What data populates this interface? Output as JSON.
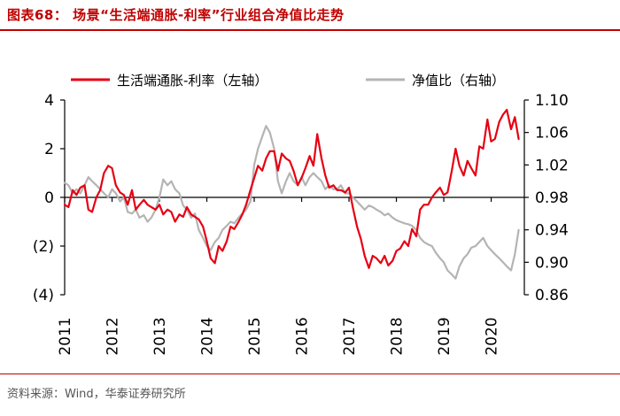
{
  "header": {
    "title": "图表68：   场景“生活端通胀-利率”行业组合净值比走势"
  },
  "footer": {
    "source": "资料来源：Wind，华泰证券研究所"
  },
  "chart_data": {
    "type": "line",
    "legend": [
      {
        "name": "生活端通胀-利率（左轴）",
        "color": "#e60012"
      },
      {
        "name": "净值比（右轴）",
        "color": "#b4b4b4"
      }
    ],
    "x_ticks": [
      "2011",
      "2012",
      "2013",
      "2014",
      "2015",
      "2016",
      "2017",
      "2018",
      "2019",
      "2020"
    ],
    "x_range": [
      2011,
      2020.7
    ],
    "y_left": {
      "ticks": [
        4,
        2,
        0,
        -2,
        -4
      ],
      "tick_labels": [
        "4",
        "2",
        "0",
        "(2)",
        "(4)"
      ],
      "ylim": [
        -4,
        4
      ]
    },
    "y_right": {
      "ticks": [
        1.1,
        1.06,
        1.02,
        0.98,
        0.94,
        0.9,
        0.86
      ],
      "tick_labels": [
        "1.10",
        "1.06",
        "1.02",
        "0.98",
        "0.94",
        "0.90",
        "0.86"
      ],
      "ylim": [
        0.86,
        1.1
      ]
    },
    "series": [
      {
        "name": "生活端通胀-利率（左轴）",
        "axis": "left",
        "color": "#e60012",
        "points": [
          [
            2011.0,
            -0.3
          ],
          [
            2011.08,
            -0.4
          ],
          [
            2011.17,
            0.3
          ],
          [
            2011.25,
            0.1
          ],
          [
            2011.33,
            0.4
          ],
          [
            2011.42,
            0.5
          ],
          [
            2011.5,
            -0.5
          ],
          [
            2011.58,
            -0.6
          ],
          [
            2011.67,
            0.0
          ],
          [
            2011.75,
            0.3
          ],
          [
            2011.83,
            1.0
          ],
          [
            2011.92,
            1.3
          ],
          [
            2012.0,
            1.2
          ],
          [
            2012.08,
            0.5
          ],
          [
            2012.17,
            0.2
          ],
          [
            2012.25,
            0.1
          ],
          [
            2012.33,
            -0.3
          ],
          [
            2012.42,
            0.3
          ],
          [
            2012.5,
            -0.5
          ],
          [
            2012.58,
            -0.3
          ],
          [
            2012.67,
            -0.1
          ],
          [
            2012.75,
            -0.3
          ],
          [
            2012.83,
            -0.4
          ],
          [
            2012.92,
            -0.5
          ],
          [
            2013.0,
            -0.3
          ],
          [
            2013.08,
            -0.7
          ],
          [
            2013.17,
            -0.5
          ],
          [
            2013.25,
            -0.6
          ],
          [
            2013.33,
            -1.0
          ],
          [
            2013.42,
            -0.7
          ],
          [
            2013.5,
            -0.8
          ],
          [
            2013.58,
            -0.4
          ],
          [
            2013.67,
            -0.7
          ],
          [
            2013.75,
            -0.8
          ],
          [
            2013.83,
            -0.9
          ],
          [
            2013.92,
            -1.2
          ],
          [
            2014.0,
            -1.8
          ],
          [
            2014.08,
            -2.5
          ],
          [
            2014.17,
            -2.7
          ],
          [
            2014.25,
            -2.0
          ],
          [
            2014.33,
            -2.2
          ],
          [
            2014.42,
            -1.8
          ],
          [
            2014.5,
            -1.2
          ],
          [
            2014.58,
            -1.3
          ],
          [
            2014.67,
            -1.0
          ],
          [
            2014.75,
            -0.7
          ],
          [
            2014.83,
            -0.3
          ],
          [
            2014.92,
            0.3
          ],
          [
            2015.0,
            0.8
          ],
          [
            2015.08,
            1.3
          ],
          [
            2015.17,
            1.1
          ],
          [
            2015.25,
            1.6
          ],
          [
            2015.33,
            1.9
          ],
          [
            2015.42,
            1.9
          ],
          [
            2015.5,
            1.1
          ],
          [
            2015.58,
            1.8
          ],
          [
            2015.67,
            1.6
          ],
          [
            2015.75,
            1.5
          ],
          [
            2015.83,
            1.1
          ],
          [
            2015.92,
            0.5
          ],
          [
            2016.0,
            0.8
          ],
          [
            2016.08,
            1.2
          ],
          [
            2016.17,
            1.7
          ],
          [
            2016.25,
            1.3
          ],
          [
            2016.33,
            2.6
          ],
          [
            2016.42,
            1.6
          ],
          [
            2016.5,
            0.9
          ],
          [
            2016.58,
            0.4
          ],
          [
            2016.67,
            0.5
          ],
          [
            2016.75,
            0.3
          ],
          [
            2016.83,
            0.3
          ],
          [
            2016.92,
            0.2
          ],
          [
            2017.0,
            0.4
          ],
          [
            2017.08,
            -0.4
          ],
          [
            2017.17,
            -1.2
          ],
          [
            2017.25,
            -1.7
          ],
          [
            2017.33,
            -2.4
          ],
          [
            2017.42,
            -2.9
          ],
          [
            2017.5,
            -2.4
          ],
          [
            2017.58,
            -2.5
          ],
          [
            2017.67,
            -2.7
          ],
          [
            2017.75,
            -2.4
          ],
          [
            2017.83,
            -2.8
          ],
          [
            2017.92,
            -2.6
          ],
          [
            2018.0,
            -2.2
          ],
          [
            2018.08,
            -2.1
          ],
          [
            2018.17,
            -1.8
          ],
          [
            2018.25,
            -2.0
          ],
          [
            2018.33,
            -1.3
          ],
          [
            2018.42,
            -1.6
          ],
          [
            2018.5,
            -0.5
          ],
          [
            2018.58,
            -0.3
          ],
          [
            2018.67,
            -0.3
          ],
          [
            2018.75,
            0.0
          ],
          [
            2018.83,
            0.2
          ],
          [
            2018.92,
            0.4
          ],
          [
            2019.0,
            0.1
          ],
          [
            2019.08,
            0.2
          ],
          [
            2019.17,
            1.1
          ],
          [
            2019.25,
            2.0
          ],
          [
            2019.33,
            1.3
          ],
          [
            2019.42,
            0.9
          ],
          [
            2019.5,
            1.5
          ],
          [
            2019.58,
            1.2
          ],
          [
            2019.67,
            0.9
          ],
          [
            2019.75,
            2.1
          ],
          [
            2019.83,
            2.0
          ],
          [
            2019.92,
            3.2
          ],
          [
            2020.0,
            2.3
          ],
          [
            2020.08,
            2.4
          ],
          [
            2020.17,
            3.1
          ],
          [
            2020.25,
            3.4
          ],
          [
            2020.33,
            3.6
          ],
          [
            2020.42,
            2.8
          ],
          [
            2020.5,
            3.3
          ],
          [
            2020.58,
            2.4
          ]
        ]
      },
      {
        "name": "净值比（右轴）",
        "axis": "right",
        "color": "#b4b4b4",
        "points": [
          [
            2011.0,
            0.998
          ],
          [
            2011.08,
            0.995
          ],
          [
            2011.17,
            0.985
          ],
          [
            2011.25,
            0.99
          ],
          [
            2011.33,
            0.985
          ],
          [
            2011.42,
            0.995
          ],
          [
            2011.5,
            1.005
          ],
          [
            2011.58,
            1.0
          ],
          [
            2011.67,
            0.995
          ],
          [
            2011.75,
            0.99
          ],
          [
            2011.83,
            0.985
          ],
          [
            2011.92,
            0.98
          ],
          [
            2012.0,
            0.99
          ],
          [
            2012.08,
            0.985
          ],
          [
            2012.17,
            0.975
          ],
          [
            2012.25,
            0.98
          ],
          [
            2012.33,
            0.962
          ],
          [
            2012.42,
            0.96
          ],
          [
            2012.5,
            0.965
          ],
          [
            2012.58,
            0.955
          ],
          [
            2012.67,
            0.958
          ],
          [
            2012.75,
            0.95
          ],
          [
            2012.83,
            0.955
          ],
          [
            2012.92,
            0.965
          ],
          [
            2013.0,
            0.98
          ],
          [
            2013.08,
            1.002
          ],
          [
            2013.17,
            0.995
          ],
          [
            2013.25,
            1.0
          ],
          [
            2013.33,
            0.99
          ],
          [
            2013.42,
            0.985
          ],
          [
            2013.5,
            0.97
          ],
          [
            2013.58,
            0.965
          ],
          [
            2013.67,
            0.955
          ],
          [
            2013.75,
            0.96
          ],
          [
            2013.83,
            0.94
          ],
          [
            2013.92,
            0.93
          ],
          [
            2014.0,
            0.92
          ],
          [
            2014.08,
            0.915
          ],
          [
            2014.17,
            0.925
          ],
          [
            2014.25,
            0.93
          ],
          [
            2014.33,
            0.94
          ],
          [
            2014.42,
            0.945
          ],
          [
            2014.5,
            0.95
          ],
          [
            2014.58,
            0.948
          ],
          [
            2014.67,
            0.955
          ],
          [
            2014.75,
            0.96
          ],
          [
            2014.83,
            0.965
          ],
          [
            2014.92,
            0.975
          ],
          [
            2015.0,
            1.02
          ],
          [
            2015.08,
            1.04
          ],
          [
            2015.17,
            1.055
          ],
          [
            2015.25,
            1.068
          ],
          [
            2015.33,
            1.06
          ],
          [
            2015.42,
            1.04
          ],
          [
            2015.5,
            1.0
          ],
          [
            2015.58,
            0.985
          ],
          [
            2015.67,
            1.0
          ],
          [
            2015.75,
            1.01
          ],
          [
            2015.83,
            1.0
          ],
          [
            2015.92,
            0.995
          ],
          [
            2016.0,
            1.005
          ],
          [
            2016.08,
            0.995
          ],
          [
            2016.17,
            1.005
          ],
          [
            2016.25,
            1.01
          ],
          [
            2016.33,
            1.005
          ],
          [
            2016.42,
            1.0
          ],
          [
            2016.5,
            0.99
          ],
          [
            2016.58,
            0.995
          ],
          [
            2016.67,
            0.99
          ],
          [
            2016.75,
            0.99
          ],
          [
            2016.83,
            0.995
          ],
          [
            2016.92,
            0.985
          ],
          [
            2017.0,
            0.985
          ],
          [
            2017.08,
            0.98
          ],
          [
            2017.17,
            0.975
          ],
          [
            2017.25,
            0.97
          ],
          [
            2017.33,
            0.965
          ],
          [
            2017.42,
            0.97
          ],
          [
            2017.5,
            0.968
          ],
          [
            2017.58,
            0.965
          ],
          [
            2017.67,
            0.962
          ],
          [
            2017.75,
            0.958
          ],
          [
            2017.83,
            0.96
          ],
          [
            2017.92,
            0.955
          ],
          [
            2018.0,
            0.952
          ],
          [
            2018.08,
            0.95
          ],
          [
            2018.17,
            0.948
          ],
          [
            2018.25,
            0.947
          ],
          [
            2018.33,
            0.945
          ],
          [
            2018.42,
            0.94
          ],
          [
            2018.5,
            0.93
          ],
          [
            2018.58,
            0.925
          ],
          [
            2018.67,
            0.922
          ],
          [
            2018.75,
            0.92
          ],
          [
            2018.83,
            0.912
          ],
          [
            2018.92,
            0.905
          ],
          [
            2019.0,
            0.9
          ],
          [
            2019.08,
            0.89
          ],
          [
            2019.17,
            0.885
          ],
          [
            2019.25,
            0.88
          ],
          [
            2019.33,
            0.895
          ],
          [
            2019.42,
            0.905
          ],
          [
            2019.5,
            0.91
          ],
          [
            2019.58,
            0.918
          ],
          [
            2019.67,
            0.92
          ],
          [
            2019.75,
            0.925
          ],
          [
            2019.83,
            0.93
          ],
          [
            2019.92,
            0.92
          ],
          [
            2020.0,
            0.915
          ],
          [
            2020.08,
            0.91
          ],
          [
            2020.17,
            0.905
          ],
          [
            2020.25,
            0.9
          ],
          [
            2020.33,
            0.895
          ],
          [
            2020.42,
            0.89
          ],
          [
            2020.5,
            0.91
          ],
          [
            2020.58,
            0.94
          ]
        ]
      }
    ]
  }
}
